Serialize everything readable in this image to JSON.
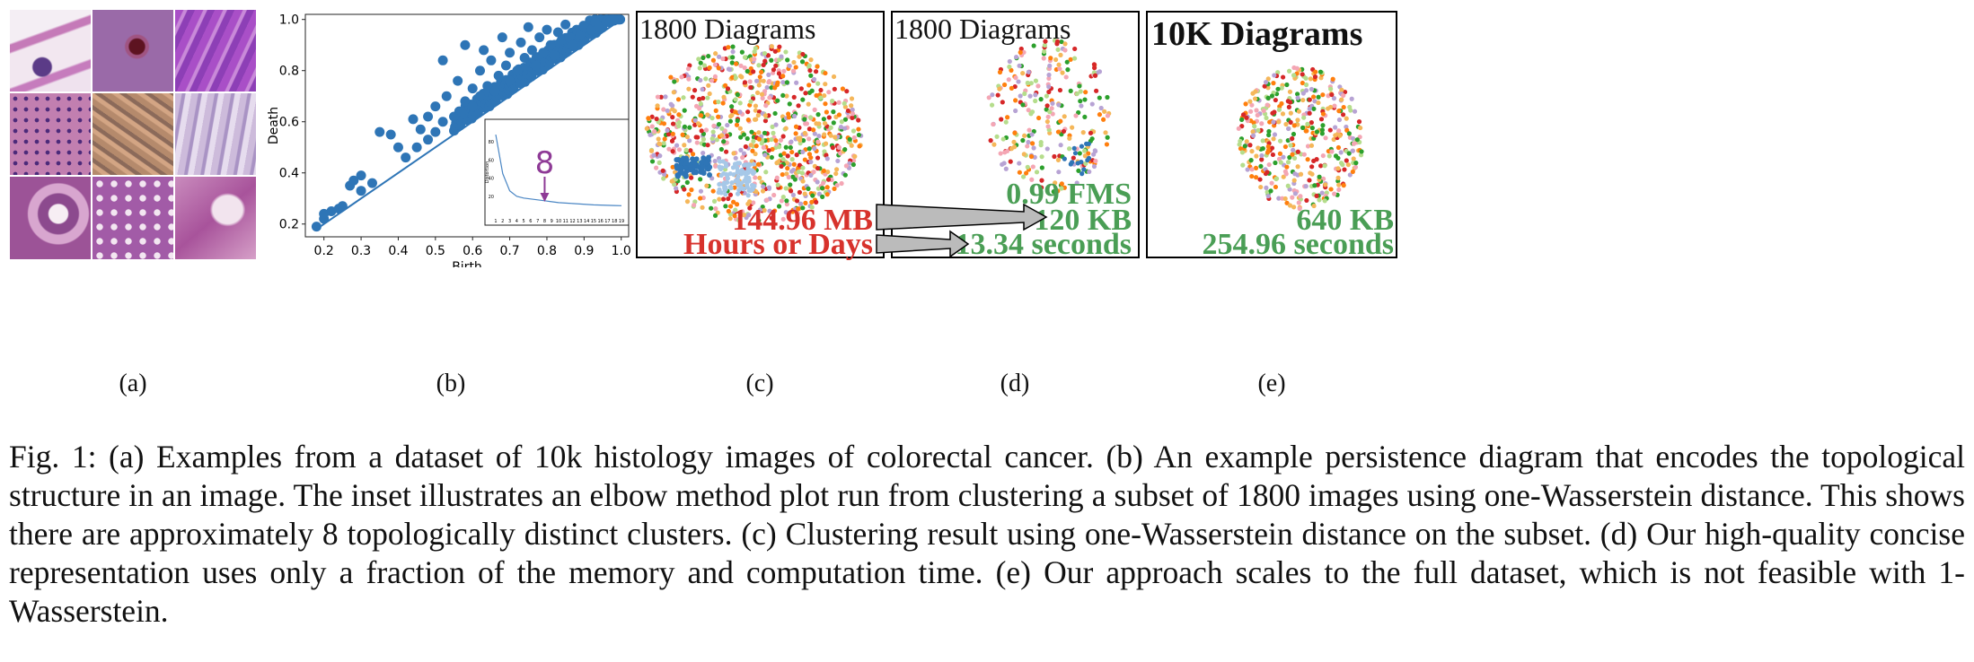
{
  "figure": {
    "sublabels": {
      "a": "(a)",
      "b": "(b)",
      "c": "(c)",
      "d": "(d)",
      "e": "(e)"
    },
    "panel_c": {
      "title": "1800 Diagrams",
      "memory": "144.96 MB",
      "time": "Hours or Days"
    },
    "panel_d": {
      "title": "1800 Diagrams",
      "fms": "0.99 FMS",
      "memory": "120 KB",
      "time": "13.34 seconds"
    },
    "panel_e": {
      "title": "10K Diagrams",
      "memory": "640 KB",
      "time": "254.96 seconds"
    },
    "inset": {
      "annotation": "8"
    },
    "colors": {
      "red": "#d7322c",
      "green": "#4a9e55",
      "scatter_blue": "#2e75b6",
      "purple": "#8e3a96"
    },
    "cluster_colors": [
      "#2e75b6",
      "#a6c8e8",
      "#d62728",
      "#2ca02c",
      "#f5b75a",
      "#ff7f0e",
      "#b7a3d4",
      "#b5dd8c",
      "#f4a6b4"
    ]
  },
  "caption": "Fig. 1: (a) Examples from a dataset of 10k histology images of colorectal cancer. (b) An example persistence diagram that encodes the topological structure in an image. The inset illustrates an elbow method plot run from clustering a subset of 1800 images using one-Wasserstein distance. This shows there are approximately 8 topologically distinct clusters. (c) Clustering result using one-Wasserstein distance on the subset. (d) Our high-quality concise representation uses only a fraction of the memory and computation time. (e) Our approach scales to the full dataset, which is not feasible with 1-Wasserstein.",
  "chart_data": [
    {
      "type": "scatter",
      "xlabel": "Birth",
      "ylabel": "Death",
      "xlim": [
        0.15,
        1.02
      ],
      "ylim": [
        0.15,
        1.02
      ],
      "xticks": [
        "0.2",
        "0.3",
        "0.4",
        "0.5",
        "0.6",
        "0.7",
        "0.8",
        "0.9",
        "1.0"
      ],
      "yticks": [
        "0.2",
        "0.4",
        "0.6",
        "0.8",
        "1.0"
      ],
      "diagonal": true,
      "points": [
        [
          0.18,
          0.19
        ],
        [
          0.2,
          0.22
        ],
        [
          0.2,
          0.24
        ],
        [
          0.22,
          0.25
        ],
        [
          0.24,
          0.26
        ],
        [
          0.25,
          0.27
        ],
        [
          0.27,
          0.35
        ],
        [
          0.28,
          0.37
        ],
        [
          0.3,
          0.39
        ],
        [
          0.3,
          0.33
        ],
        [
          0.33,
          0.36
        ],
        [
          0.35,
          0.56
        ],
        [
          0.38,
          0.55
        ],
        [
          0.4,
          0.5
        ],
        [
          0.42,
          0.46
        ],
        [
          0.44,
          0.61
        ],
        [
          0.45,
          0.5
        ],
        [
          0.46,
          0.57
        ],
        [
          0.48,
          0.53
        ],
        [
          0.48,
          0.62
        ],
        [
          0.5,
          0.66
        ],
        [
          0.5,
          0.56
        ],
        [
          0.52,
          0.84
        ],
        [
          0.52,
          0.6
        ],
        [
          0.53,
          0.7
        ],
        [
          0.55,
          0.62
        ],
        [
          0.56,
          0.76
        ],
        [
          0.57,
          0.64
        ],
        [
          0.58,
          0.68
        ],
        [
          0.58,
          0.9
        ],
        [
          0.6,
          0.73
        ],
        [
          0.6,
          0.66
        ],
        [
          0.62,
          0.8
        ],
        [
          0.62,
          0.7
        ],
        [
          0.63,
          0.88
        ],
        [
          0.64,
          0.74
        ],
        [
          0.65,
          0.84
        ],
        [
          0.66,
          0.72
        ],
        [
          0.67,
          0.78
        ],
        [
          0.68,
          0.93
        ],
        [
          0.69,
          0.82
        ],
        [
          0.7,
          0.76
        ],
        [
          0.7,
          0.87
        ],
        [
          0.72,
          0.8
        ],
        [
          0.73,
          0.91
        ],
        [
          0.74,
          0.85
        ],
        [
          0.75,
          0.97
        ],
        [
          0.76,
          0.88
        ],
        [
          0.77,
          0.82
        ],
        [
          0.78,
          0.93
        ],
        [
          0.79,
          0.87
        ],
        [
          0.8,
          0.96
        ],
        [
          0.81,
          0.9
        ],
        [
          0.82,
          0.86
        ],
        [
          0.83,
          0.95
        ],
        [
          0.84,
          0.92
        ],
        [
          0.85,
          0.98
        ],
        [
          0.86,
          0.93
        ],
        [
          0.87,
          0.9
        ],
        [
          0.88,
          0.96
        ],
        [
          0.89,
          0.94
        ],
        [
          0.9,
          0.97
        ],
        [
          0.92,
          0.96
        ],
        [
          0.93,
          0.99
        ],
        [
          0.94,
          0.97
        ],
        [
          0.96,
          0.99
        ],
        [
          0.97,
          0.99
        ],
        [
          0.98,
          1.0
        ]
      ]
    },
    {
      "type": "line",
      "title": "",
      "ylabel": "Distortion",
      "xticks": [
        "1",
        "2",
        "3",
        "4",
        "5",
        "6",
        "7",
        "8",
        "9",
        "10",
        "11",
        "12",
        "13",
        "14",
        "15",
        "16",
        "17",
        "18",
        "19"
      ],
      "yticks": [
        "20",
        "40",
        "60",
        "80"
      ],
      "x": [
        1,
        2,
        3,
        4,
        5,
        6,
        7,
        8,
        9,
        10,
        11,
        12,
        13,
        14,
        15,
        16,
        17,
        18,
        19
      ],
      "values": [
        88,
        45,
        26,
        20,
        18,
        17,
        16,
        15,
        14,
        13,
        12.5,
        12,
        11.5,
        11,
        10.5,
        10.3,
        10,
        9.8,
        9.6
      ],
      "ylim": [
        0,
        95
      ]
    }
  ]
}
